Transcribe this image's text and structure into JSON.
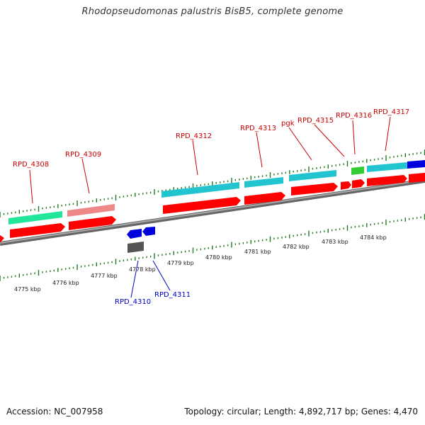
{
  "title": "Rhodopseudomonas palustris BisB5, complete genome",
  "footer": {
    "accession": "Accession: NC_007958",
    "summary": "Topology: circular; Length: 4,892,717 bp; Genes: 4,470"
  },
  "colors": {
    "backbone": "#888888",
    "tick": "#1f7a1f",
    "label_top": "#cc0000",
    "label_bottom": "#0000cc",
    "cds": "#ff0000",
    "teal": "#22c5cf",
    "mint": "#22e79a",
    "pink": "#ee8888",
    "green": "#33cc33",
    "blue": "#0000dd",
    "gray": "#555555"
  },
  "scale": {
    "unit": "kbp",
    "labels": [
      "4775 kbp",
      "4776 kbp",
      "4777 kbp",
      "4778 kbp",
      "4779 kbp",
      "4780 kbp",
      "4781 kbp",
      "4782 kbp",
      "4783 kbp",
      "4784 kbp"
    ]
  },
  "genes": {
    "top": [
      "RPD_4308",
      "RPD_4309",
      "RPD_4312",
      "RPD_4313",
      "pgk",
      "RPD_4315",
      "RPD_4316",
      "RPD_4317"
    ],
    "bottom": [
      "RPD_4310",
      "RPD_4311"
    ]
  }
}
